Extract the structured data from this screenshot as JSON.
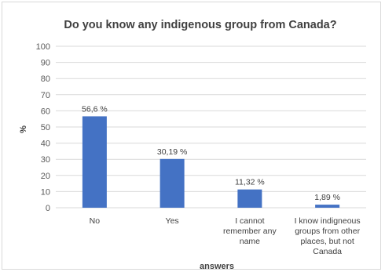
{
  "chart_data": {
    "type": "bar",
    "title": "Do you know any indigenous group from Canada?",
    "xlabel": "answers",
    "ylabel": "%",
    "ylim": [
      0,
      100
    ],
    "yticks": [
      0,
      10,
      20,
      30,
      40,
      50,
      60,
      70,
      80,
      90,
      100
    ],
    "categories": [
      [
        "No"
      ],
      [
        "Yes"
      ],
      [
        "I cannot",
        "remember any",
        "name"
      ],
      [
        "I know indigneous",
        "groups from other",
        "places, but not",
        "Canada"
      ]
    ],
    "values": [
      56.6,
      30.19,
      11.32,
      1.89
    ],
    "data_labels": [
      "56,6 %",
      "30,19 %",
      "11,32 %",
      "1,89 %"
    ],
    "bar_color": "#4472C4",
    "grid_color": "#d9d9d9",
    "grid": true,
    "legend": "none"
  }
}
